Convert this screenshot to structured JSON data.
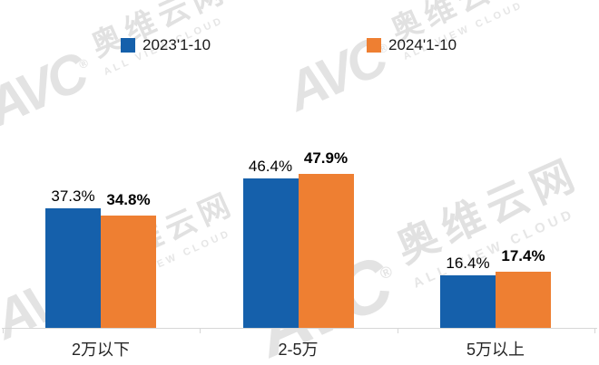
{
  "watermark": {
    "brand": "AVC",
    "reg": "®",
    "cn": "奥维云网",
    "en": "ALL VIEW CLOUD"
  },
  "legend": {
    "items": [
      {
        "label": "2023'1-10",
        "color": "#1560ab"
      },
      {
        "label": "2024'1-10",
        "color": "#ee7f32"
      }
    ]
  },
  "chart_data": {
    "type": "bar",
    "categories": [
      "2万以下",
      "2-5万",
      "5万以上"
    ],
    "series": [
      {
        "name": "2023'1-10",
        "color": "#1560ab",
        "values": [
          37.3,
          46.4,
          16.4
        ]
      },
      {
        "name": "2024'1-10",
        "color": "#ee7f32",
        "values": [
          34.8,
          47.9,
          17.4
        ]
      }
    ],
    "value_suffix": "%",
    "title": "",
    "xlabel": "",
    "ylabel": "",
    "ylim": [
      0,
      55
    ],
    "grid": false,
    "legend_position": "top",
    "data_labels": true
  }
}
